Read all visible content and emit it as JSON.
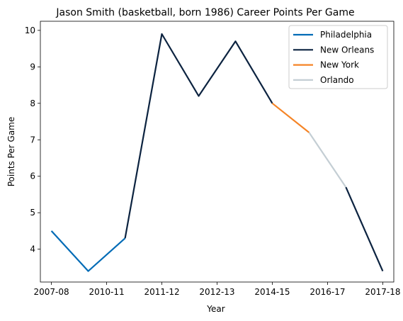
{
  "chart_data": {
    "type": "line",
    "title": "Jason Smith (basketball, born 1986) Career Points Per Game",
    "xlabel": "Year",
    "ylabel": "Points Per Game",
    "x_ticks": [
      "2007-08",
      "2010-11",
      "2011-12",
      "2012-13",
      "2014-15",
      "2016-17",
      "2017-18"
    ],
    "y_ticks": [
      4,
      5,
      6,
      7,
      8,
      9,
      10
    ],
    "ylim": [
      3.1,
      10.25
    ],
    "xlim": [
      -0.3,
      9.3
    ],
    "grid": false,
    "legend_position": "top-right",
    "series": [
      {
        "name": "Philadelphia",
        "color": "#006BB6",
        "x": [
          0,
          1,
          2
        ],
        "y": [
          4.5,
          3.4,
          4.3
        ]
      },
      {
        "name": "New Orleans",
        "color": "#0C2340",
        "x": [
          2,
          3,
          4,
          5,
          6
        ],
        "y": [
          4.3,
          9.9,
          8.2,
          9.7,
          8.0
        ]
      },
      {
        "name": "New York",
        "color": "#F58426",
        "x": [
          6,
          7
        ],
        "y": [
          8.0,
          7.2
        ]
      },
      {
        "name": "Orlando",
        "color": "#C4CED4",
        "x": [
          7,
          8
        ],
        "y": [
          7.2,
          5.7
        ]
      },
      {
        "name": "New Orleans",
        "color": "#0C2340",
        "x": [
          8,
          9
        ],
        "y": [
          5.7,
          3.4
        ]
      }
    ],
    "legend": [
      {
        "name": "Philadelphia",
        "color": "#006BB6"
      },
      {
        "name": "New Orleans",
        "color": "#0C2340"
      },
      {
        "name": "New York",
        "color": "#F58426"
      },
      {
        "name": "Orlando",
        "color": "#C4CED4"
      }
    ]
  }
}
